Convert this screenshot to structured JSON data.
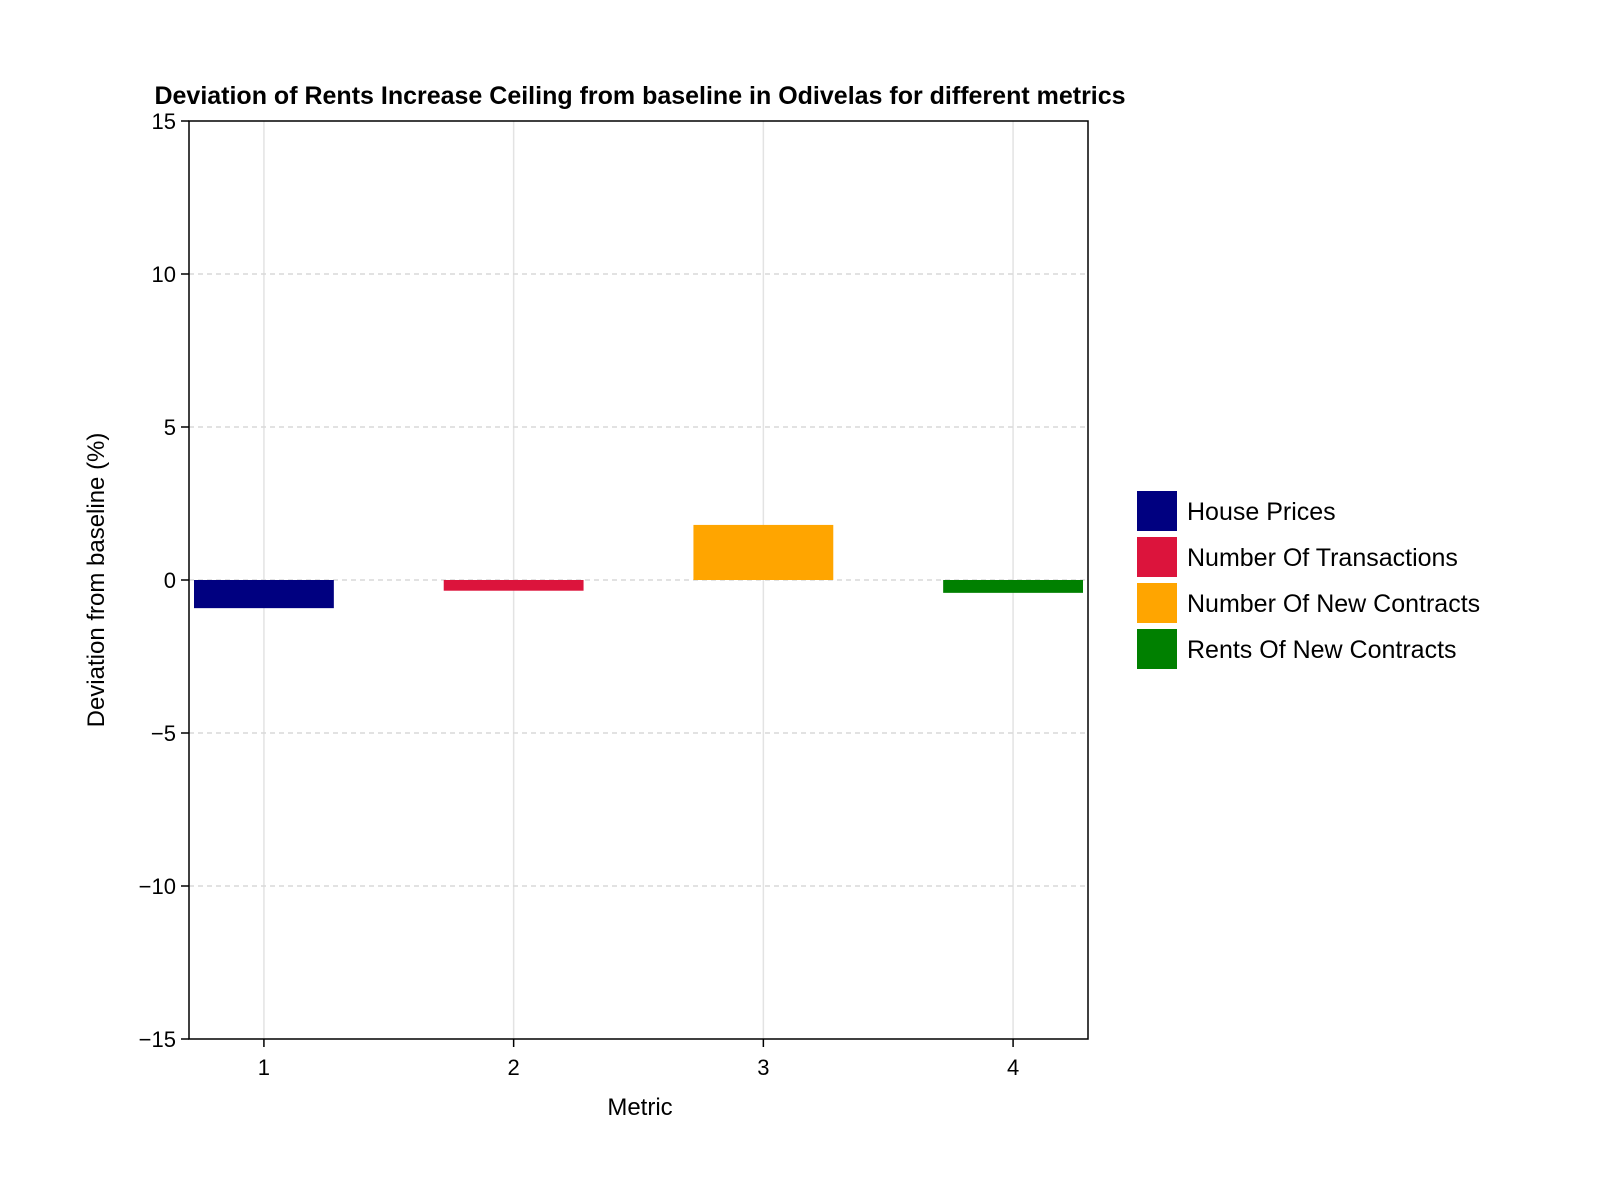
{
  "chart_data": {
    "type": "bar",
    "title": "Deviation of Rents Increase Ceiling from baseline in Odivelas for different metrics",
    "xlabel": "Metric",
    "ylabel": "Deviation from baseline (%)",
    "categories": [
      "1",
      "2",
      "3",
      "4"
    ],
    "x": [
      1,
      2,
      3,
      4
    ],
    "values": [
      -0.92,
      -0.35,
      1.8,
      -0.42
    ],
    "series": [
      {
        "name": "House Prices",
        "x": 1,
        "value": -0.92,
        "color": "#000080"
      },
      {
        "name": "Number Of Transactions",
        "x": 2,
        "value": -0.35,
        "color": "#dc143c"
      },
      {
        "name": "Number Of New Contracts",
        "x": 3,
        "value": 1.8,
        "color": "#ffa500"
      },
      {
        "name": "Rents Of New Contracts",
        "x": 4,
        "value": -0.42,
        "color": "#008000"
      }
    ],
    "xlim": [
      0.7,
      4.3
    ],
    "ylim": [
      -15,
      15
    ],
    "yticks": [
      -15,
      -10,
      -5,
      0,
      5,
      10,
      15
    ],
    "ytick_labels": [
      "−15",
      "−10",
      "−5",
      "0",
      "5",
      "10",
      "15"
    ],
    "xticks": [
      1,
      2,
      3,
      4
    ],
    "xtick_labels": [
      "1",
      "2",
      "3",
      "4"
    ],
    "grid": true,
    "legend_position": "right"
  }
}
